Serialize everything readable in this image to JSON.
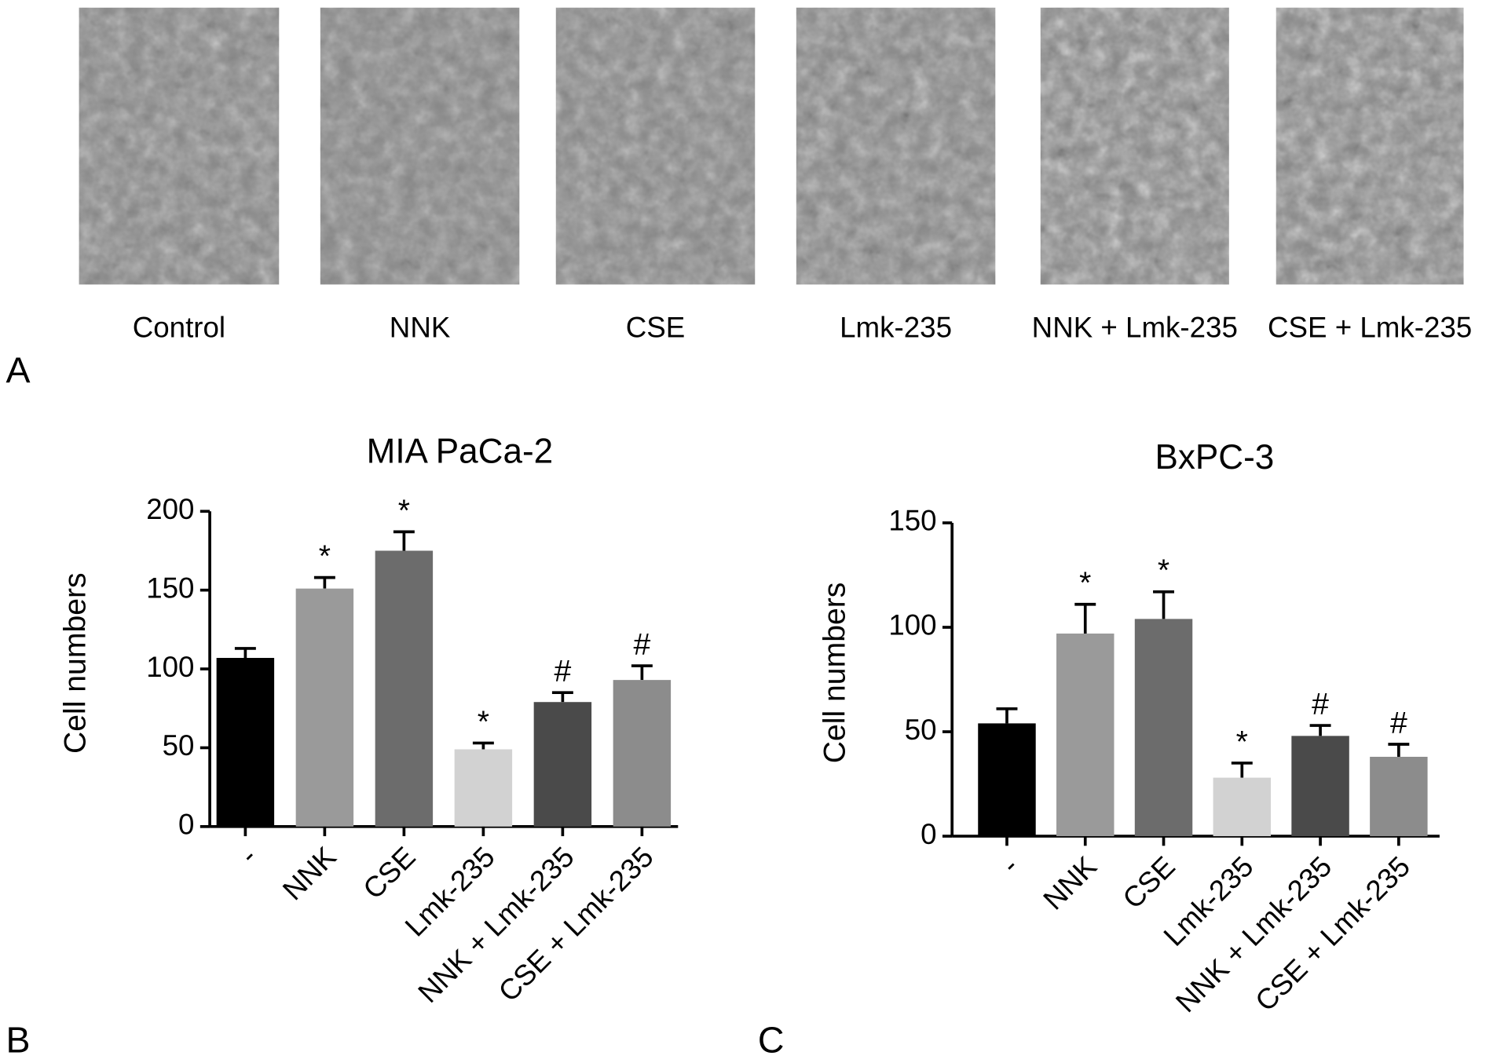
{
  "panels": {
    "a": {
      "label": "A",
      "captions": [
        "Control",
        "NNK",
        "CSE",
        "Lmk-235",
        "NNK + Lmk-235",
        "CSE + Lmk-235"
      ]
    },
    "b": {
      "label": "B"
    },
    "c": {
      "label": "C"
    }
  },
  "chart_data": [
    {
      "type": "bar",
      "title": "MIA PaCa-2",
      "y_label": "Cell numbers",
      "categories": [
        "-",
        "NNK",
        "CSE",
        "Lmk-235",
        "NNK + Lmk-235",
        "CSE + Lmk-235"
      ],
      "values": [
        107,
        151,
        175,
        49,
        79,
        93
      ],
      "errors": [
        6,
        7,
        12,
        4,
        6,
        9
      ],
      "annotations": [
        null,
        "*",
        "*",
        "*",
        "#",
        "#"
      ],
      "colors": [
        "#000000",
        "#9a9a9a",
        "#6c6c6c",
        "#d2d2d2",
        "#4a4a4a",
        "#8c8c8c"
      ],
      "ylim": [
        0,
        200
      ],
      "yticks": [
        0,
        50,
        100,
        150,
        200
      ]
    },
    {
      "type": "bar",
      "title": "BxPC-3",
      "y_label": "Cell numbers",
      "categories": [
        "-",
        "NNK",
        "CSE",
        "Lmk-235",
        "NNK + Lmk-235",
        "CSE + Lmk-235"
      ],
      "values": [
        54,
        97,
        104,
        28,
        48,
        38
      ],
      "errors": [
        7,
        14,
        13,
        7,
        5,
        6
      ],
      "annotations": [
        null,
        "*",
        "*",
        "*",
        "#",
        "#"
      ],
      "colors": [
        "#000000",
        "#9a9a9a",
        "#6c6c6c",
        "#d2d2d2",
        "#4a4a4a",
        "#8c8c8c"
      ],
      "ylim": [
        0,
        150
      ],
      "yticks": [
        0,
        50,
        100,
        150
      ]
    }
  ]
}
